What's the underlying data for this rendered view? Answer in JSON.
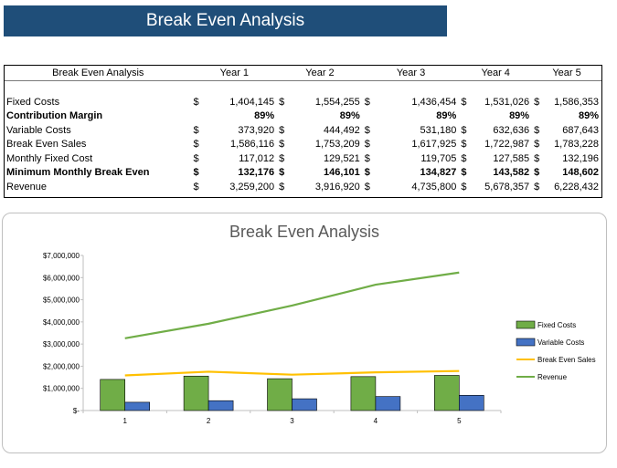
{
  "banner_title": "Break Even Analysis",
  "table": {
    "corner": "Break Even Analysis",
    "currency_symbol": "$",
    "years": [
      "Year 1",
      "Year 2",
      "Year 3",
      "Year 4",
      "Year 5"
    ],
    "rows": [
      {
        "label": "Fixed Costs",
        "bold": false,
        "currency": true,
        "values": [
          "1,404,145",
          "1,554,255",
          "1,436,454",
          "1,531,026",
          "1,586,353"
        ]
      },
      {
        "label": "Contribution Margin",
        "bold": true,
        "currency": false,
        "values": [
          "89%",
          "89%",
          "89%",
          "89%",
          "89%"
        ]
      },
      {
        "label": "Variable Costs",
        "bold": false,
        "currency": true,
        "values": [
          "373,920",
          "444,492",
          "531,180",
          "632,636",
          "687,643"
        ]
      },
      {
        "label": "Break Even Sales",
        "bold": false,
        "currency": true,
        "values": [
          "1,586,116",
          "1,753,209",
          "1,617,925",
          "1,722,987",
          "1,783,228"
        ]
      },
      {
        "label": "Monthly Fixed Cost",
        "bold": false,
        "currency": true,
        "values": [
          "117,012",
          "129,521",
          "119,705",
          "127,585",
          "132,196"
        ]
      },
      {
        "label": "Minimum Monthly Break Even",
        "bold": true,
        "currency": true,
        "values": [
          "132,176",
          "146,101",
          "134,827",
          "143,582",
          "148,602"
        ]
      },
      {
        "label": "Revenue",
        "bold": false,
        "currency": true,
        "values": [
          "3,259,200",
          "3,916,920",
          "4,735,800",
          "5,678,357",
          "6,228,432"
        ]
      }
    ]
  },
  "chart_data": {
    "type": "bar",
    "title": "Break Even Analysis",
    "categories": [
      "1",
      "2",
      "3",
      "4",
      "5"
    ],
    "ylim": [
      0,
      7000000
    ],
    "yticks": [
      0,
      1000000,
      2000000,
      3000000,
      4000000,
      5000000,
      6000000,
      7000000
    ],
    "ytick_labels": [
      "$-",
      "$1,000,000",
      "$2,000,000",
      "$3,000,000",
      "$4,000,000",
      "$5,000,000",
      "$6,000,000",
      "$7,000,000"
    ],
    "legend_position": "right",
    "grid": false,
    "series": [
      {
        "name": "Fixed Costs",
        "kind": "bar",
        "color": "#70ad47",
        "values": [
          1404145,
          1554255,
          1436454,
          1531026,
          1586353
        ]
      },
      {
        "name": "Variable Costs",
        "kind": "bar",
        "color": "#4472c4",
        "values": [
          373920,
          444492,
          531180,
          632636,
          687643
        ]
      },
      {
        "name": "Break Even Sales",
        "kind": "line",
        "color": "#ffc000",
        "values": [
          1586116,
          1753209,
          1617925,
          1722987,
          1783228
        ]
      },
      {
        "name": "Revenue",
        "kind": "line",
        "color": "#70ad47",
        "values": [
          3259200,
          3916920,
          4735800,
          5678357,
          6228432
        ]
      }
    ]
  }
}
